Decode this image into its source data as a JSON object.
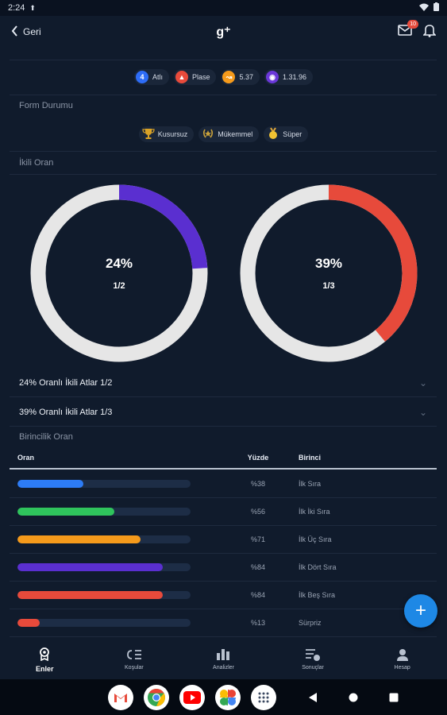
{
  "status_bar": {
    "time": "2:24"
  },
  "app_bar": {
    "back_label": "Geri",
    "logo": "g⁺",
    "mail_badge": "10"
  },
  "chips": [
    {
      "icon_text": "4",
      "label": "Atlı",
      "color": "#2d6cf6"
    },
    {
      "icon_text": "▲",
      "label": "Plase",
      "color": "#e74a3b"
    },
    {
      "icon_text": "↝",
      "label": "5.37",
      "color": "#f59a1b"
    },
    {
      "icon_text": "◉",
      "label": "1.31.96",
      "color": "#6a37d8"
    }
  ],
  "form": {
    "title": "Form Durumu",
    "items": [
      {
        "label": "Kusursuz",
        "icon": "trophy-icon"
      },
      {
        "label": "Mükemmel",
        "icon": "laurel-icon"
      },
      {
        "label": "Süper",
        "icon": "medal-icon"
      }
    ]
  },
  "ikili": {
    "title": "İkili Oran",
    "donuts": [
      {
        "percent_label": "24%",
        "fraction": "1/2",
        "value": 24,
        "color": "#5a2fd0",
        "track": "#e6e6e6"
      },
      {
        "percent_label": "39%",
        "fraction": "1/3",
        "value": 39,
        "color": "#e74a3b",
        "track": "#e6e6e6"
      }
    ],
    "rows": [
      {
        "label": "24% Oranlı İkili Atlar 1/2"
      },
      {
        "label": "39% Oranlı İkili Atlar 1/3"
      }
    ]
  },
  "birincilik": {
    "title": "Birincilik Oran",
    "headers": {
      "oran": "Oran",
      "yuzde": "Yüzde",
      "birinci": "Birinci"
    },
    "rows": [
      {
        "pct": "%38",
        "value": 38,
        "label": "İlk Sıra",
        "color": "#2d7cf6"
      },
      {
        "pct": "%56",
        "value": 56,
        "label": "İlk İki Sıra",
        "color": "#2fc45c"
      },
      {
        "pct": "%71",
        "value": 71,
        "label": "İlk Üç Sıra",
        "color": "#f59a1b"
      },
      {
        "pct": "%84",
        "value": 84,
        "label": "İlk Dört Sıra",
        "color": "#5a2fd0"
      },
      {
        "pct": "%84",
        "value": 84,
        "label": "İlk Beş Sıra",
        "color": "#e74a3b"
      },
      {
        "pct": "%13",
        "value": 13,
        "label": "Sürpriz",
        "color": "#e74a3b"
      }
    ]
  },
  "bottom_nav": [
    {
      "label": "Enler",
      "icon": "medal-icon",
      "active": true
    },
    {
      "label": "Koşular",
      "icon": "list-icon",
      "active": false
    },
    {
      "label": "Analizler",
      "icon": "bar-chart-icon",
      "active": false
    },
    {
      "label": "Sonuçlar",
      "icon": "results-icon",
      "active": false
    },
    {
      "label": "Hesap",
      "icon": "person-icon",
      "active": false
    }
  ],
  "fab": {
    "label": "+"
  }
}
